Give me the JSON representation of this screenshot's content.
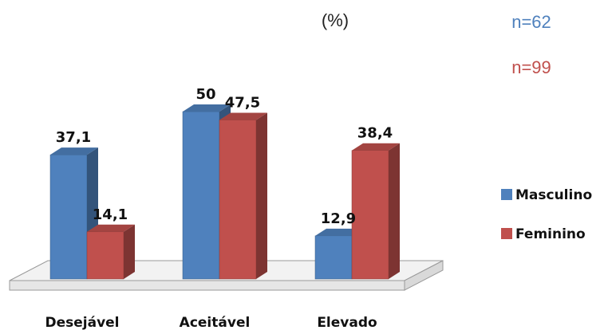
{
  "chart_data": {
    "type": "bar",
    "title": "",
    "unit_label": "(%)",
    "categories": [
      "Desejável",
      "Aceitável",
      "Elevado"
    ],
    "series": [
      {
        "name": "Masculino",
        "values": [
          37.1,
          50,
          12.9
        ],
        "labels": [
          "37,1",
          "50",
          "12,9"
        ],
        "color": "#4f81bd",
        "n_label": "n=62"
      },
      {
        "name": "Feminino",
        "values": [
          14.1,
          47.5,
          38.4
        ],
        "labels": [
          "14,1",
          "47,5",
          "38,4"
        ],
        "color": "#c0504d",
        "n_label": "n=99"
      }
    ],
    "ylim": [
      0,
      50
    ],
    "style": "3d-clustered-column",
    "legend_position": "right",
    "grid": false
  }
}
